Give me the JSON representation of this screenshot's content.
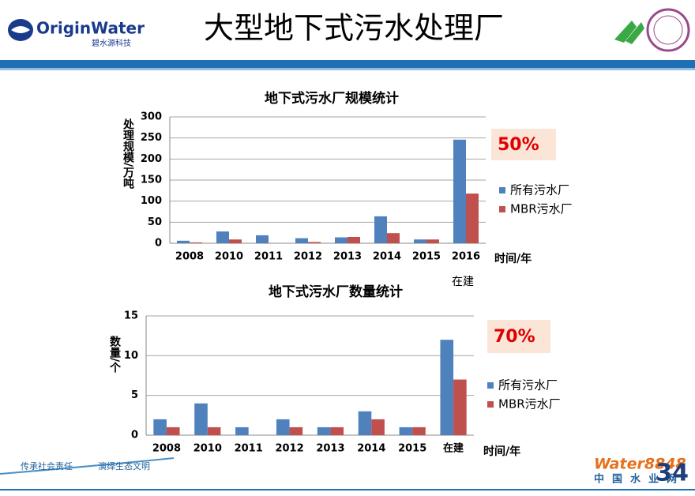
{
  "header": {
    "logo": "OriginWater",
    "logo_sub": "碧水源科技",
    "title": "大型地下式污水处理厂"
  },
  "footer": {
    "slogan_1": "传承社会责任",
    "slogan_2": "演绎生态文明",
    "site_brand": "Water8848",
    "site_name": "中国水业网",
    "page": "34"
  },
  "chart_data": [
    {
      "type": "bar",
      "title": "地下式污水厂规模统计",
      "y_label": "处理规模/万吨",
      "x_label": "时间/年",
      "categories": [
        "2008",
        "2010",
        "2011",
        "2012",
        "2013",
        "2014",
        "2015",
        "2016"
      ],
      "series": [
        {
          "name": "所有污水厂",
          "color": "#4f81bd",
          "values": [
            6,
            28,
            19,
            12,
            14,
            64,
            9,
            246
          ]
        },
        {
          "name": "MBR污水厂",
          "color": "#c0504d",
          "values": [
            2,
            9,
            0,
            3,
            15,
            24,
            9,
            118
          ]
        }
      ],
      "ylim": [
        0,
        300
      ],
      "yticks": [
        0,
        50,
        100,
        150,
        200,
        250,
        300
      ],
      "grid": true,
      "note": "在建",
      "highlight": "50%"
    },
    {
      "type": "bar",
      "title": "地下式污水厂数量统计",
      "y_label": "数量/个",
      "x_label": "时间/年",
      "categories": [
        "2008",
        "2010",
        "2011",
        "2012",
        "2013",
        "2014",
        "2015",
        "在建"
      ],
      "series": [
        {
          "name": "所有污水厂",
          "color": "#4f81bd",
          "values": [
            2,
            4,
            1,
            2,
            1,
            3,
            1,
            12
          ]
        },
        {
          "name": "MBR污水厂",
          "color": "#c0504d",
          "values": [
            1,
            1,
            0,
            1,
            1,
            2,
            1,
            7
          ]
        }
      ],
      "ylim": [
        0,
        15
      ],
      "yticks": [
        0,
        5,
        10,
        15
      ],
      "grid": true,
      "highlight": "70%"
    }
  ]
}
